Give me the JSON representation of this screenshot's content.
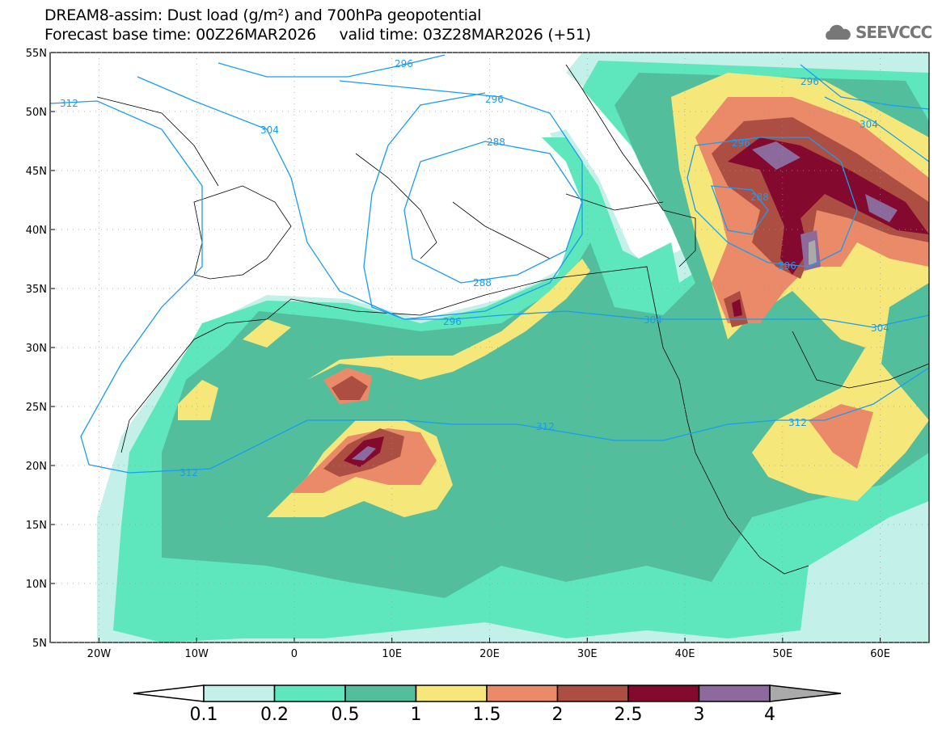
{
  "header": {
    "title_line1": "DREAM8-assim: Dust load (g/m²) and 700hPa geopotential",
    "title_line2": "Forecast base time: 00Z26MAR2026     valid time: 03Z28MAR2026 (+51)",
    "logo_text": "SEEVCCC"
  },
  "map": {
    "lon_range": [
      -25,
      65
    ],
    "lat_range": [
      5,
      55
    ],
    "lat_labels": [
      "55N",
      "50N",
      "45N",
      "40N",
      "35N",
      "30N",
      "25N",
      "20N",
      "15N",
      "10N",
      "5N"
    ],
    "lon_labels": [
      "20W",
      "10W",
      "0",
      "10E",
      "20E",
      "30E",
      "40E",
      "50E",
      "60E"
    ],
    "contour_labels": [
      "312",
      "304",
      "296",
      "288",
      "296",
      "288",
      "296",
      "304",
      "312",
      "312",
      "304",
      "296",
      "288",
      "296",
      "304",
      "312",
      "296"
    ]
  },
  "colorbar": {
    "levels": [
      "0.1",
      "0.2",
      "0.5",
      "1",
      "1.5",
      "2",
      "2.5",
      "3",
      "4"
    ],
    "colors": [
      "#c3f0e8",
      "#5ee6bd",
      "#52be9c",
      "#f5e77a",
      "#ea8a68",
      "#ad4e42",
      "#830a2e",
      "#8c6a9b"
    ],
    "under_color": "#ffffff",
    "over_color": "#aaaaaa"
  }
}
